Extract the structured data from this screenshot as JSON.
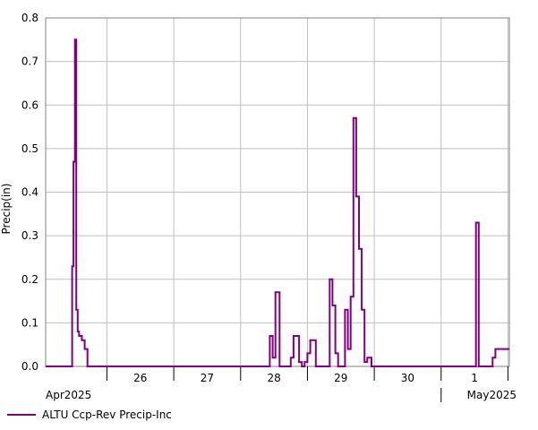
{
  "chart_data": {
    "type": "line",
    "step": true,
    "ylabel": "Precip(in)",
    "xlabel": "",
    "ylim": [
      0,
      0.8
    ],
    "yticks": [
      0.0,
      0.1,
      0.2,
      0.3,
      0.4,
      0.5,
      0.6,
      0.7,
      0.8
    ],
    "xlim": [
      "2025-04-25 02:00",
      "2025-05-02 00:30"
    ],
    "day_ticks": [
      "26",
      "27",
      "28",
      "29",
      "30",
      "1"
    ],
    "month_labels": [
      "Apr2025",
      "May2025"
    ],
    "grid": true,
    "legend_position": "bottom-left",
    "colors": {
      "series": "#800080",
      "grid": "#c0c0c0"
    },
    "series": [
      {
        "name": "ALTU Ccp-Rev Precip-Inc",
        "x": [
          "2025-04-25 02:00",
          "2025-04-25 11:30",
          "2025-04-25 12:00",
          "2025-04-25 12:30",
          "2025-04-25 13:00",
          "2025-04-25 13:30",
          "2025-04-25 14:00",
          "2025-04-25 15:00",
          "2025-04-25 16:00",
          "2025-04-25 17:00",
          "2025-04-25 18:00",
          "2025-04-28 10:30",
          "2025-04-28 11:30",
          "2025-04-28 12:30",
          "2025-04-28 14:00",
          "2025-04-28 18:00",
          "2025-04-28 19:00",
          "2025-04-28 21:00",
          "2025-04-28 22:00",
          "2025-04-28 23:00",
          "2025-04-29 00:00",
          "2025-04-29 01:00",
          "2025-04-29 03:00",
          "2025-04-29 08:00",
          "2025-04-29 09:00",
          "2025-04-29 10:00",
          "2025-04-29 11:00",
          "2025-04-29 13:30",
          "2025-04-29 14:30",
          "2025-04-29 15:30",
          "2025-04-29 16:30",
          "2025-04-29 17:30",
          "2025-04-29 18:30",
          "2025-04-29 19:30",
          "2025-04-29 20:30",
          "2025-04-29 21:30",
          "2025-04-29 23:00",
          "2025-05-01 12:30",
          "2025-05-01 13:30",
          "2025-05-01 18:30",
          "2025-05-01 19:30",
          "2025-05-02 00:30"
        ],
        "y": [
          0,
          0.23,
          0.47,
          0.75,
          0.13,
          0.08,
          0.07,
          0.06,
          0.04,
          0,
          0,
          0.07,
          0.02,
          0.17,
          0,
          0.02,
          0.07,
          0.01,
          0,
          0.01,
          0.03,
          0.06,
          0,
          0.2,
          0.14,
          0.03,
          0,
          0.13,
          0.04,
          0.16,
          0.57,
          0.39,
          0.27,
          0.13,
          0.01,
          0.02,
          0,
          0.33,
          0,
          0.02,
          0.04,
          0.04
        ]
      }
    ]
  }
}
